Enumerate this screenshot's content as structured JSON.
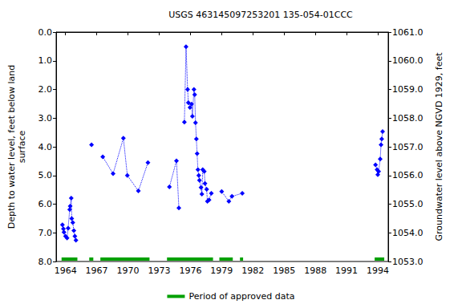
{
  "chart_data": {
    "type": "line",
    "title": "USGS 463145097253201 135-054-01CCC",
    "ylabel": "Depth to water level, feet below land\nsurface",
    "y2label": "Groundwater level above NGVD 1929, feet",
    "xlim": [
      1963.1,
      1995.0
    ],
    "xticks": [
      1964,
      1967,
      1970,
      1973,
      1976,
      1979,
      1982,
      1985,
      1988,
      1991,
      1994
    ],
    "ylim": [
      0,
      8
    ],
    "yticks": [
      {
        "value": 0,
        "label": "0.0"
      },
      {
        "value": 1,
        "label": "1.0"
      },
      {
        "value": 2,
        "label": "2.0"
      },
      {
        "value": 3,
        "label": "3.0"
      },
      {
        "value": 4,
        "label": "4.0"
      },
      {
        "value": 5,
        "label": "5.0"
      },
      {
        "value": 6,
        "label": "6.0"
      },
      {
        "value": 7,
        "label": "7.0"
      },
      {
        "value": 8,
        "label": "8.0"
      }
    ],
    "y2lim": [
      1061,
      1053
    ],
    "y2ticks": [
      {
        "value": 1061,
        "label": "1061.0"
      },
      {
        "value": 1060,
        "label": "1060.0"
      },
      {
        "value": 1059,
        "label": "1059.0"
      },
      {
        "value": 1058,
        "label": "1058.0"
      },
      {
        "value": 1057,
        "label": "1057.0"
      },
      {
        "value": 1056,
        "label": "1056.0"
      },
      {
        "value": 1055,
        "label": "1055.0"
      },
      {
        "value": 1054,
        "label": "1054.0"
      },
      {
        "value": 1053,
        "label": "1053.0"
      }
    ],
    "grid": false,
    "legend": "bottom",
    "series": [
      {
        "type": "line",
        "color": "#0000ff",
        "marker": "diamond",
        "line_style": "dotted",
        "x": [
          1963.7,
          1963.8,
          1963.85,
          1964.0,
          1964.15,
          1964.25,
          1964.4,
          1964.45,
          1964.55,
          1964.6,
          1964.7,
          1964.8,
          1964.9,
          1965.0,
          null,
          1966.5,
          null,
          1967.58,
          1968.57,
          1969.56,
          1969.94,
          1971.0,
          1971.92,
          null,
          1973.98,
          1974.66,
          1974.89,
          null,
          1975.42,
          1975.58,
          1975.73,
          1975.8,
          1975.96,
          1976.11,
          1976.19,
          1976.34,
          1976.41,
          1976.49,
          1976.57,
          1976.64,
          1976.72,
          1976.8,
          1976.87,
          1977.02,
          1977.1,
          1977.18,
          1977.33,
          1977.4,
          1977.56,
          1977.63,
          1977.79,
          1978.01,
          null,
          1979.0,
          1979.69,
          1979.99,
          1980.98,
          null,
          1993.78,
          1993.93,
          1994.0,
          1994.08,
          1994.23,
          1994.31,
          1994.38,
          1994.46
        ],
        "values": [
          6.72,
          6.86,
          6.98,
          7.12,
          7.18,
          6.84,
          6.19,
          6.07,
          5.79,
          6.5,
          6.64,
          6.92,
          7.12,
          7.26,
          null,
          3.93,
          null,
          4.35,
          4.94,
          3.7,
          5.0,
          5.54,
          4.55,
          null,
          5.4,
          4.49,
          6.13,
          null,
          3.14,
          0.51,
          2.0,
          2.46,
          2.63,
          2.51,
          2.94,
          2.0,
          2.18,
          3.16,
          3.73,
          4.24,
          4.8,
          5.0,
          5.17,
          5.42,
          5.65,
          4.8,
          4.86,
          5.28,
          5.48,
          5.9,
          5.85,
          5.62,
          null,
          5.56,
          5.9,
          5.73,
          5.62,
          null,
          4.63,
          4.8,
          4.97,
          4.86,
          4.43,
          3.93,
          3.73,
          3.47
        ]
      },
      {
        "type": "period",
        "name": "Period of approved data",
        "color": "#00a000",
        "periods": [
          [
            1963.62,
            1965.14
          ],
          [
            1966.28,
            1966.67
          ],
          [
            1967.35,
            1972.07
          ],
          [
            1973.75,
            1978.17
          ],
          [
            1978.78,
            1980.07
          ],
          [
            1980.76,
            1981.06
          ],
          [
            1993.7,
            1994.62
          ]
        ]
      }
    ]
  }
}
